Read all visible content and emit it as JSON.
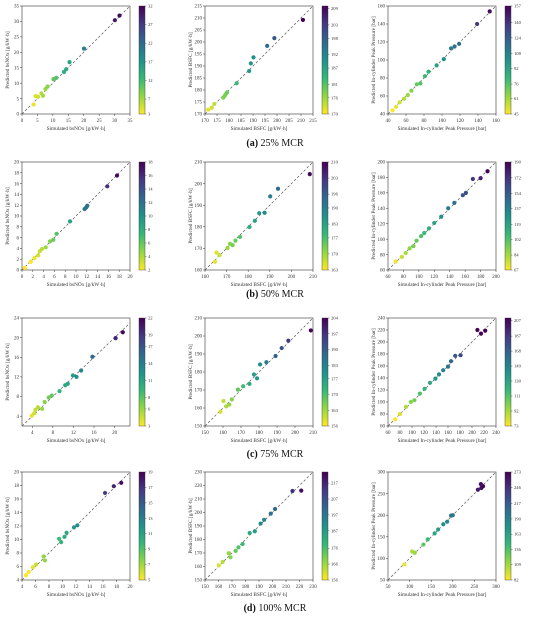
{
  "figure": {
    "colormap": [
      "#fde725",
      "#90d743",
      "#35b779",
      "#21918c",
      "#31688e",
      "#443983",
      "#440154"
    ],
    "ref_line_color": "#555555"
  },
  "captions": [
    {
      "label": "(a)",
      "text": "25% MCR"
    },
    {
      "label": "(b)",
      "text": "50% MCR"
    },
    {
      "label": "(c)",
      "text": "75% MCR"
    },
    {
      "label": "(d)",
      "text": "100% MCR"
    }
  ],
  "chart_data": [
    {
      "type": "scatter",
      "row": 0,
      "col": 0,
      "xlabel": "Simulated bsNOx [g/kW·h]",
      "ylabel": "Predicted bsNOx [g/kW·h]",
      "xlim": [
        0,
        35
      ],
      "ylim": [
        0,
        35
      ],
      "xticks": [
        0,
        5,
        10,
        15,
        20,
        25,
        30,
        35
      ],
      "yticks": [
        0,
        5,
        10,
        15,
        20,
        25,
        30,
        35
      ],
      "cticks": [
        3,
        7,
        12,
        17,
        22,
        27,
        32
      ],
      "clim": [
        3,
        32
      ],
      "points": [
        [
          3.8,
          3.1
        ],
        [
          4.4,
          5.8
        ],
        [
          5.2,
          5.6
        ],
        [
          6.3,
          6.7
        ],
        [
          6.8,
          5.9
        ],
        [
          7.6,
          8.1
        ],
        [
          8.3,
          8.9
        ],
        [
          10.2,
          11.3
        ],
        [
          11.1,
          11.7
        ],
        [
          13.6,
          13.6
        ],
        [
          14.3,
          14.5
        ],
        [
          15.4,
          16.8
        ],
        [
          20.1,
          21.2
        ],
        [
          30.1,
          30.4
        ],
        [
          31.6,
          31.9
        ]
      ]
    },
    {
      "type": "scatter",
      "row": 0,
      "col": 1,
      "xlabel": "Simulated BSFC [g/kW·h]",
      "ylabel": "Predicted BSFC [g/kW·h]",
      "xlim": [
        170,
        215
      ],
      "ylim": [
        170,
        215
      ],
      "xticks": [
        170,
        175,
        180,
        185,
        190,
        195,
        200,
        205,
        210,
        215
      ],
      "yticks": [
        170,
        175,
        180,
        185,
        190,
        195,
        200,
        205,
        210,
        215
      ],
      "cticks": [
        170,
        176,
        181,
        187,
        192,
        198,
        203,
        209
      ],
      "clim": [
        170,
        210
      ],
      "points": [
        [
          171.3,
          171.8
        ],
        [
          172.8,
          172.6
        ],
        [
          173.9,
          174.2
        ],
        [
          177.6,
          176.8
        ],
        [
          178.1,
          177.4
        ],
        [
          178.6,
          178.2
        ],
        [
          179.2,
          179.0
        ],
        [
          183.2,
          182.8
        ],
        [
          188.4,
          187.9
        ],
        [
          189.1,
          191.1
        ],
        [
          190.2,
          193.6
        ],
        [
          195.9,
          198.4
        ],
        [
          198.9,
          201.6
        ],
        [
          210.8,
          209.2
        ]
      ]
    },
    {
      "type": "scatter",
      "row": 0,
      "col": 2,
      "xlabel": "Simulated In-cylinder Peak Pressure [bar]",
      "ylabel": "Predicted In-cylinder Peak Pressure [bar]",
      "xlim": [
        40,
        160
      ],
      "ylim": [
        40,
        160
      ],
      "xticks": [
        40,
        60,
        80,
        100,
        120,
        140,
        160
      ],
      "yticks": [
        40,
        60,
        80,
        100,
        120,
        140,
        160
      ],
      "cticks": [
        45,
        61,
        76,
        92,
        108,
        124,
        140,
        157
      ],
      "clim": [
        45,
        157
      ],
      "points": [
        [
          45,
          44
        ],
        [
          49,
          48
        ],
        [
          53,
          53
        ],
        [
          58,
          57
        ],
        [
          62,
          61
        ],
        [
          66,
          66
        ],
        [
          72,
          73
        ],
        [
          76,
          74
        ],
        [
          81,
          82
        ],
        [
          85,
          87
        ],
        [
          94,
          94
        ],
        [
          102,
          101
        ],
        [
          110,
          113
        ],
        [
          114,
          115
        ],
        [
          119,
          118
        ],
        [
          139,
          140
        ],
        [
          153,
          154
        ]
      ]
    },
    {
      "type": "scatter",
      "row": 1,
      "col": 0,
      "xlabel": "Simulated bsNOx [g/kW·h]",
      "ylabel": "Predicted bsNOx [g/kW·h]",
      "xlim": [
        0,
        20
      ],
      "ylim": [
        0,
        20
      ],
      "xticks": [
        0,
        2,
        4,
        6,
        8,
        10,
        12,
        14,
        16,
        18,
        20
      ],
      "yticks": [
        0,
        2,
        4,
        6,
        8,
        10,
        12,
        14,
        16,
        18,
        20
      ],
      "cticks": [
        2,
        4,
        6,
        8,
        10,
        12,
        14,
        16,
        18
      ],
      "clim": [
        2,
        18
      ],
      "points": [
        [
          0.5,
          0.4
        ],
        [
          1.6,
          1.5
        ],
        [
          2.3,
          2.2
        ],
        [
          3.0,
          2.7
        ],
        [
          3.3,
          3.5
        ],
        [
          3.7,
          3.9
        ],
        [
          4.4,
          4.2
        ],
        [
          5.2,
          5.3
        ],
        [
          5.8,
          5.6
        ],
        [
          6.4,
          6.7
        ],
        [
          8.9,
          9.0
        ],
        [
          11.6,
          11.3
        ],
        [
          11.9,
          11.6
        ],
        [
          12.1,
          11.9
        ],
        [
          15.8,
          15.5
        ],
        [
          17.6,
          17.5
        ]
      ]
    },
    {
      "type": "scatter",
      "row": 1,
      "col": 1,
      "xlabel": "Simulated BSFC [g/kW·h]",
      "ylabel": "Predicted BSFC [g/kW·h]",
      "xlim": [
        160,
        210
      ],
      "ylim": [
        160,
        210
      ],
      "xticks": [
        160,
        170,
        180,
        190,
        200,
        210
      ],
      "yticks": [
        160,
        170,
        180,
        190,
        200,
        210
      ],
      "cticks": [
        163,
        170,
        177,
        183,
        190,
        196,
        203,
        210
      ],
      "clim": [
        163,
        210
      ],
      "points": [
        [
          164.6,
          163.8
        ],
        [
          165.3,
          168.1
        ],
        [
          166.7,
          166.9
        ],
        [
          170.4,
          170.2
        ],
        [
          171.6,
          172.1
        ],
        [
          172.8,
          171.5
        ],
        [
          174.1,
          173.6
        ],
        [
          176.2,
          175.3
        ],
        [
          180.6,
          179.9
        ],
        [
          183.1,
          182.8
        ],
        [
          185.1,
          186.3
        ],
        [
          187.6,
          186.5
        ],
        [
          190.2,
          194.1
        ],
        [
          193.8,
          197.6
        ],
        [
          208.5,
          204.4
        ]
      ]
    },
    {
      "type": "scatter",
      "row": 1,
      "col": 2,
      "xlabel": "Simulated In-cylinder Peak Pressure [bar]",
      "ylabel": "Predicted In-cylinder Peak Pressure [bar]",
      "xlim": [
        60,
        200
      ],
      "ylim": [
        60,
        200
      ],
      "xticks": [
        60,
        80,
        100,
        120,
        140,
        160,
        180,
        200
      ],
      "yticks": [
        60,
        80,
        100,
        120,
        140,
        160,
        180,
        200
      ],
      "cticks": [
        67,
        84,
        102,
        119,
        137,
        154,
        172,
        190
      ],
      "clim": [
        67,
        190
      ],
      "points": [
        [
          70,
          71
        ],
        [
          78,
          77
        ],
        [
          83,
          82
        ],
        [
          88,
          88
        ],
        [
          93,
          91
        ],
        [
          97,
          98
        ],
        [
          103,
          104
        ],
        [
          107,
          108
        ],
        [
          113,
          114
        ],
        [
          120,
          121
        ],
        [
          129,
          129
        ],
        [
          138,
          140
        ],
        [
          146,
          147
        ],
        [
          157,
          157
        ],
        [
          161,
          160
        ],
        [
          170,
          178
        ],
        [
          180,
          179
        ],
        [
          189,
          188
        ]
      ]
    },
    {
      "type": "scatter",
      "row": 2,
      "col": 0,
      "xlabel": "Simulated bsNOx [g/kW·h]",
      "ylabel": "Predicted bsNOx [g/kW·h]",
      "xlim": [
        2,
        23
      ],
      "ylim": [
        2,
        24
      ],
      "xticks": [
        4,
        8,
        12,
        16,
        20
      ],
      "yticks": [
        4,
        8,
        12,
        16,
        20,
        24
      ],
      "cticks": [
        3,
        6,
        8,
        11,
        14,
        17,
        19,
        22
      ],
      "clim": [
        3,
        22
      ],
      "points": [
        [
          3.9,
          4.1
        ],
        [
          4.4,
          4.6
        ],
        [
          4.6,
          5.3
        ],
        [
          5.1,
          5.8
        ],
        [
          5.9,
          5.5
        ],
        [
          6.4,
          6.9
        ],
        [
          7.2,
          7.8
        ],
        [
          7.8,
          8.2
        ],
        [
          9.3,
          9.1
        ],
        [
          10.4,
          10.3
        ],
        [
          10.9,
          10.6
        ],
        [
          11.9,
          12.3
        ],
        [
          12.6,
          12.0
        ],
        [
          13.5,
          13.3
        ],
        [
          15.7,
          16.1
        ],
        [
          20.2,
          19.9
        ],
        [
          21.6,
          21.1
        ]
      ]
    },
    {
      "type": "scatter",
      "row": 2,
      "col": 1,
      "xlabel": "Simulated BSFC [g/kW·h]",
      "ylabel": "Predicted BSFC [g/kW·h]",
      "xlim": [
        150,
        210
      ],
      "ylim": [
        150,
        210
      ],
      "xticks": [
        150,
        160,
        170,
        180,
        190,
        200,
        210
      ],
      "yticks": [
        150,
        160,
        170,
        180,
        190,
        200,
        210
      ],
      "cticks": [
        156,
        163,
        170,
        177,
        183,
        190,
        197,
        204
      ],
      "clim": [
        156,
        204
      ],
      "points": [
        [
          158.6,
          157.9
        ],
        [
          160.3,
          163.9
        ],
        [
          161.8,
          160.9
        ],
        [
          163.5,
          161.9
        ],
        [
          164.9,
          164.8
        ],
        [
          168.3,
          170.2
        ],
        [
          171.2,
          172.1
        ],
        [
          174.7,
          173.4
        ],
        [
          177.2,
          178.6
        ],
        [
          178.9,
          176.5
        ],
        [
          180.6,
          184.2
        ],
        [
          184.1,
          185.4
        ],
        [
          189.2,
          188.9
        ],
        [
          192.6,
          193.3
        ],
        [
          196.3,
          197.4
        ],
        [
          208.8,
          203.1
        ]
      ]
    },
    {
      "type": "scatter",
      "row": 2,
      "col": 2,
      "xlabel": "Simulated In-cylinder Peak Pressure [bar]",
      "ylabel": "Predicted In-cylinder Peak Pressure [bar]",
      "xlim": [
        60,
        240
      ],
      "ylim": [
        60,
        240
      ],
      "xticks": [
        60,
        80,
        100,
        120,
        140,
        160,
        180,
        200,
        220,
        240
      ],
      "yticks": [
        60,
        80,
        100,
        120,
        140,
        160,
        180,
        200,
        220,
        240
      ],
      "cticks": [
        73,
        92,
        111,
        130,
        149,
        168,
        187,
        207
      ],
      "clim": [
        73,
        210
      ],
      "points": [
        [
          72,
          71
        ],
        [
          80,
          80
        ],
        [
          90,
          92
        ],
        [
          98,
          100
        ],
        [
          104,
          103
        ],
        [
          113,
          114
        ],
        [
          121,
          122
        ],
        [
          130,
          132
        ],
        [
          139,
          139
        ],
        [
          145,
          146
        ],
        [
          152,
          153
        ],
        [
          160,
          159
        ],
        [
          165,
          168
        ],
        [
          172,
          177
        ],
        [
          181,
          178
        ],
        [
          209,
          220
        ],
        [
          215,
          214
        ],
        [
          222,
          219
        ]
      ]
    },
    {
      "type": "scatter",
      "row": 3,
      "col": 0,
      "xlabel": "Simulated bsNOx [g/kW·h]",
      "ylabel": "Predicted bsNOx [g/kW·h]",
      "xlim": [
        4,
        20
      ],
      "ylim": [
        4,
        20
      ],
      "xticks": [
        4,
        6,
        8,
        10,
        12,
        14,
        16,
        18,
        20
      ],
      "yticks": [
        4,
        6,
        8,
        10,
        12,
        14,
        16,
        18,
        20
      ],
      "cticks": [
        5,
        7,
        9,
        11,
        13,
        15,
        17,
        19
      ],
      "clim": [
        5,
        19
      ],
      "points": [
        [
          4.6,
          4.7
        ],
        [
          5.0,
          5.2
        ],
        [
          5.6,
          5.9
        ],
        [
          6.1,
          6.3
        ],
        [
          7.2,
          7.5
        ],
        [
          7.4,
          6.9
        ],
        [
          9.5,
          10.1
        ],
        [
          9.8,
          9.6
        ],
        [
          10.3,
          10.4
        ],
        [
          10.6,
          11.0
        ],
        [
          11.7,
          11.8
        ],
        [
          12.2,
          12.1
        ],
        [
          16.3,
          16.9
        ],
        [
          17.6,
          17.9
        ],
        [
          18.7,
          18.4
        ]
      ]
    },
    {
      "type": "scatter",
      "row": 3,
      "col": 1,
      "xlabel": "Simulated BSFC [g/kW·h]",
      "ylabel": "Predicted BSFC [g/kW·h]",
      "xlim": [
        150,
        230
      ],
      "ylim": [
        150,
        230
      ],
      "xticks": [
        150,
        160,
        170,
        180,
        190,
        200,
        210,
        220,
        230
      ],
      "yticks": [
        150,
        160,
        170,
        180,
        190,
        200,
        210,
        220,
        230
      ],
      "cticks": [
        156,
        166,
        176,
        187,
        197,
        207,
        217,
        227
      ],
      "clim": [
        156,
        224
      ],
      "points": [
        [
          160.2,
          160.8
        ],
        [
          163.1,
          163.4
        ],
        [
          167.6,
          169.8
        ],
        [
          168.9,
          166.8
        ],
        [
          172.7,
          171.6
        ],
        [
          174.8,
          174.2
        ],
        [
          177.9,
          176.7
        ],
        [
          183.1,
          184.8
        ],
        [
          186.9,
          186.1
        ],
        [
          191.2,
          191.8
        ],
        [
          193.8,
          194.6
        ],
        [
          198.7,
          199.2
        ],
        [
          201.9,
          202.6
        ],
        [
          214.8,
          215.9
        ],
        [
          221.3,
          216.2
        ]
      ]
    },
    {
      "type": "scatter",
      "row": 3,
      "col": 2,
      "xlabel": "Simulated In-cylinder Peak Pressure [bar]",
      "ylabel": "Predicted In-cylinder Peak Pressure [bar]",
      "xlim": [
        50,
        300
      ],
      "ylim": [
        50,
        300
      ],
      "xticks": [
        50,
        100,
        150,
        200,
        250,
        300
      ],
      "yticks": [
        50,
        100,
        150,
        200,
        250,
        300
      ],
      "cticks": [
        82,
        109,
        136,
        163,
        190,
        217,
        246,
        273
      ],
      "clim": [
        82,
        273
      ],
      "points": [
        [
          88,
          86
        ],
        [
          106,
          116
        ],
        [
          112,
          113
        ],
        [
          132,
          132
        ],
        [
          142,
          144
        ],
        [
          158,
          158
        ],
        [
          166,
          167
        ],
        [
          178,
          179
        ],
        [
          187,
          185
        ],
        [
          196,
          199
        ],
        [
          200,
          200
        ],
        [
          258,
          259
        ],
        [
          266,
          263
        ],
        [
          270,
          267
        ],
        [
          265,
          272
        ]
      ]
    }
  ]
}
